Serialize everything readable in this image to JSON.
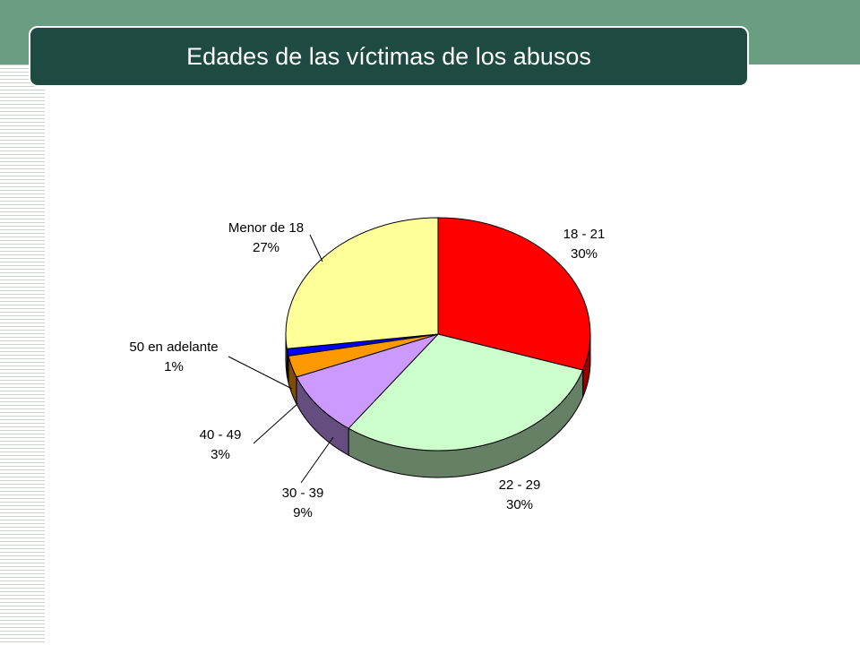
{
  "slide": {
    "title": "Edades de las víctimas de los abusos"
  },
  "colors": {
    "top_band": "#6a9e82",
    "title_bar": "#1f4a41"
  },
  "chart_data": {
    "type": "pie",
    "title": "",
    "style": "3d",
    "start_angle_deg": 0,
    "direction": "clockwise",
    "slices": [
      {
        "category": "18 - 21",
        "percent_label": "30%",
        "value": 30,
        "color": "#ff0000",
        "side_color": "#990000"
      },
      {
        "category": "22 - 29",
        "percent_label": "30%",
        "value": 30,
        "color": "#ccffcc",
        "side_color": "#668066"
      },
      {
        "category": "30 - 39",
        "percent_label": "9%",
        "value": 9,
        "color": "#cc99ff",
        "side_color": "#664d80"
      },
      {
        "category": "40 - 49",
        "percent_label": "3%",
        "value": 3,
        "color": "#ff9900",
        "side_color": "#804c00"
      },
      {
        "category": "50 en adelante",
        "percent_label": "1%",
        "value": 1,
        "color": "#0000ff",
        "side_color": "#000080"
      },
      {
        "category": "Menor de 18",
        "percent_label": "27%",
        "value": 27,
        "color": "#ffff99",
        "side_color": "#80804d"
      }
    ]
  }
}
